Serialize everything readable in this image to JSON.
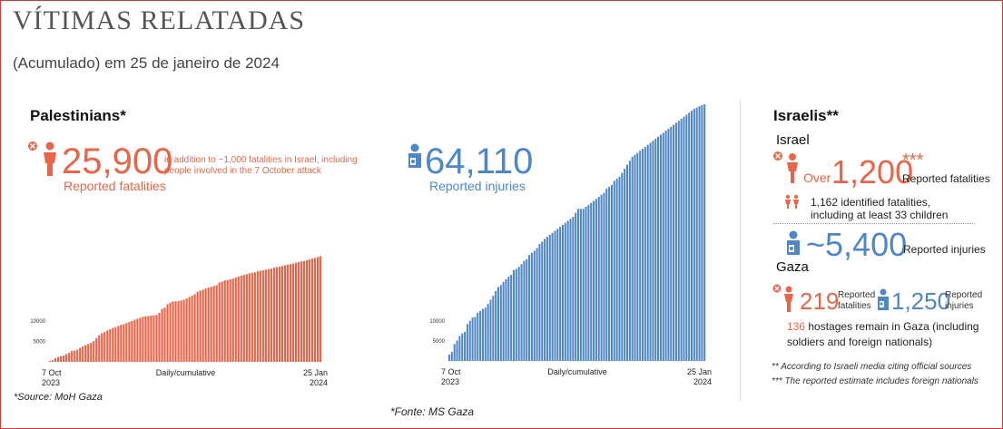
{
  "header": {
    "title": "VÍTIMAS RELATADAS",
    "subtitle": "(Acumulado) em 25 de janeiro de 2024"
  },
  "palestinians": {
    "heading": "Palestinians*",
    "fatalities_value": "25,900",
    "fatalities_note_line1": "in addition to ~1,000 fatalities in Israel, including",
    "fatalities_note_line2": "people involved in the 7 October attack",
    "fatalities_label": "Reported fatalities",
    "injuries_value": "64,110",
    "injuries_label": "Reported injuries",
    "source": "*Source: MoH Gaza"
  },
  "israelis": {
    "heading": "Israelis**",
    "israel_heading": "Israel",
    "over_label": "Over",
    "fatalities_value": "1,200",
    "fatalities_stars": "***",
    "fatalities_label": "Reported fatalities",
    "identified_line1": "1,162 identified fatalities,",
    "identified_line2": "including at least 33 children",
    "injuries_value": "~5,400",
    "injuries_label": "Reported injuries",
    "gaza_heading": "Gaza",
    "gaza_fatalities_value": "219",
    "gaza_fatalities_label_1": "Reported",
    "gaza_fatalities_label_2": "fatalities",
    "gaza_injuries_value": "1,250",
    "gaza_injuries_label_1": "Reported",
    "gaza_injuries_label_2": "injuries",
    "hostages_count": "136",
    "hostages_line1": "hostages remain in Gaza (including",
    "hostages_line2": "soldiers and foreign nationals)",
    "note1": "** According to Israeli media citing official sources",
    "note2": "*** The reported estimate includes foreign nationals"
  },
  "footer": {
    "source": "*Fonte: MS Gaza"
  },
  "colors": {
    "red": "#e8654a",
    "blue": "#4f86c6"
  },
  "icons": {
    "fatality": "person-with-x-icon",
    "injury": "injured-person-icon",
    "children": "children-icon"
  },
  "chart_data": [
    {
      "type": "bar",
      "series_color": "#e8654a",
      "x_start": "7 Oct 2023",
      "x_end": "25 Jan 2024",
      "x_label_start_line1": "7 Oct",
      "x_label_start_line2": "2023",
      "x_label_end_line1": "25 Jan",
      "x_label_end_line2": "2024",
      "xlabel": "Daily/cumulative",
      "yticks": [
        5000,
        10000
      ],
      "ytick_labels": [
        "5000",
        "10000"
      ],
      "ylim": [
        0,
        64110
      ],
      "values": [
        232,
        413,
        900,
        1200,
        1417,
        1537,
        1900,
        2228,
        2670,
        2750,
        3000,
        3478,
        3785,
        4137,
        4385,
        4651,
        5087,
        5791,
        6546,
        7028,
        7326,
        7703,
        8005,
        8306,
        8525,
        8796,
        9061,
        9227,
        9488,
        9770,
        10022,
        10328,
        10569,
        10812,
        11078,
        11180,
        11240,
        11320,
        11400,
        11500,
        12000,
        13000,
        13300,
        14128,
        14500,
        14800,
        14854,
        14950,
        15050,
        15207,
        15523,
        15899,
        16248,
        16556,
        17177,
        17487,
        17700,
        17997,
        18205,
        18412,
        18608,
        18787,
        19453,
        19667,
        20000,
        20057,
        20258,
        20424,
        20674,
        20915,
        21110,
        21320,
        21507,
        21672,
        21822,
        21978,
        22185,
        22313,
        22438,
        22600,
        22722,
        22835,
        23084,
        23210,
        23357,
        23469,
        23708,
        23843,
        23968,
        24100,
        24285,
        24448,
        24620,
        24762,
        24927,
        25105,
        25295,
        25490,
        25700,
        25900
      ]
    },
    {
      "type": "bar",
      "series_color": "#4f86c6",
      "x_start": "7 Oct 2023",
      "x_end": "25 Jan 2024",
      "x_label_start_line1": "7 Oct",
      "x_label_start_line2": "2023",
      "x_label_end_line1": "25 Jan",
      "x_label_end_line2": "2024",
      "xlabel": "Daily/cumulative",
      "yticks": [
        5000,
        10000
      ],
      "ytick_labels": [
        "5000",
        "10000"
      ],
      "ylim": [
        0,
        64110
      ],
      "values": [
        1610,
        2271,
        4250,
        5100,
        6200,
        6868,
        7262,
        9200,
        10000,
        10859,
        11000,
        12065,
        12493,
        13000,
        13300,
        14245,
        15273,
        16297,
        17439,
        18484,
        18967,
        19734,
        20400,
        21048,
        21543,
        22700,
        23000,
        23500,
        24173,
        25000,
        25400,
        26475,
        27000,
        27500,
        28200,
        29200,
        29800,
        30500,
        31000,
        31500,
        32000,
        32500,
        33000,
        33500,
        34000,
        34500,
        35000,
        35500,
        36000,
        37000,
        38000,
        38000,
        38000,
        38500,
        39000,
        39500,
        40000,
        40500,
        41000,
        41500,
        42000,
        43000,
        43500,
        44000,
        45000,
        45500,
        46000,
        47000,
        48000,
        49000,
        50000,
        51000,
        51500,
        52000,
        52500,
        53000,
        53500,
        54000,
        54500,
        55000,
        55500,
        56000,
        56500,
        57000,
        57500,
        58000,
        58500,
        59000,
        59500,
        60000,
        60500,
        61000,
        61500,
        62000,
        62500,
        63000,
        63300,
        63600,
        63900,
        64110
      ]
    }
  ]
}
